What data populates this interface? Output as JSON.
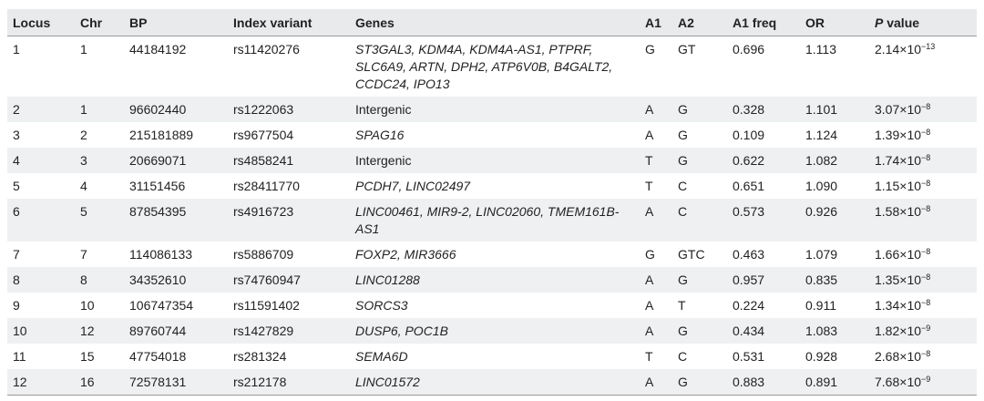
{
  "table": {
    "headers": {
      "locus": "Locus",
      "chr": "Chr",
      "bp": "BP",
      "index_variant": "Index variant",
      "genes": "Genes",
      "a1": "A1",
      "a2": "A2",
      "a1_freq": "A1 freq",
      "or": "OR",
      "p_value_p": "P",
      "p_value_rest": " value"
    },
    "rows": [
      {
        "locus": "1",
        "chr": "1",
        "bp": "44184192",
        "variant": "rs11420276",
        "genes": "ST3GAL3, KDM4A, KDM4A-AS1, PTPRF, SLC6A9, ARTN, DPH2, ATP6V0B, B4GALT2, CCDC24, IPO13",
        "italic": true,
        "a1": "G",
        "a2": "GT",
        "freq": "0.696",
        "or": "1.113",
        "p_mant": "2.14",
        "p_exp": "−13"
      },
      {
        "locus": "2",
        "chr": "1",
        "bp": "96602440",
        "variant": "rs1222063",
        "genes": "Intergenic",
        "italic": false,
        "a1": "A",
        "a2": "G",
        "freq": "0.328",
        "or": "1.101",
        "p_mant": "3.07",
        "p_exp": "−8"
      },
      {
        "locus": "3",
        "chr": "2",
        "bp": "215181889",
        "variant": "rs9677504",
        "genes": "SPAG16",
        "italic": true,
        "a1": "A",
        "a2": "G",
        "freq": "0.109",
        "or": "1.124",
        "p_mant": "1.39",
        "p_exp": "−8"
      },
      {
        "locus": "4",
        "chr": "3",
        "bp": "20669071",
        "variant": "rs4858241",
        "genes": "Intergenic",
        "italic": false,
        "a1": "T",
        "a2": "G",
        "freq": "0.622",
        "or": "1.082",
        "p_mant": "1.74",
        "p_exp": "−8"
      },
      {
        "locus": "5",
        "chr": "4",
        "bp": "31151456",
        "variant": "rs28411770",
        "genes": "PCDH7, LINC02497",
        "italic": true,
        "a1": "T",
        "a2": "C",
        "freq": "0.651",
        "or": "1.090",
        "p_mant": "1.15",
        "p_exp": "−8"
      },
      {
        "locus": "6",
        "chr": "5",
        "bp": "87854395",
        "variant": "rs4916723",
        "genes": "LINC00461, MIR9-2, LINC02060, TMEM161B-AS1",
        "italic": true,
        "a1": "A",
        "a2": "C",
        "freq": "0.573",
        "or": "0.926",
        "p_mant": "1.58",
        "p_exp": "−8"
      },
      {
        "locus": "7",
        "chr": "7",
        "bp": "114086133",
        "variant": "rs5886709",
        "genes": "FOXP2, MIR3666",
        "italic": true,
        "a1": "G",
        "a2": "GTC",
        "freq": "0.463",
        "or": "1.079",
        "p_mant": "1.66",
        "p_exp": "−8"
      },
      {
        "locus": "8",
        "chr": "8",
        "bp": "34352610",
        "variant": "rs74760947",
        "genes": "LINC01288",
        "italic": true,
        "a1": "A",
        "a2": "G",
        "freq": "0.957",
        "or": "0.835",
        "p_mant": "1.35",
        "p_exp": "−8"
      },
      {
        "locus": "9",
        "chr": "10",
        "bp": "106747354",
        "variant": "rs11591402",
        "genes": "SORCS3",
        "italic": true,
        "a1": "A",
        "a2": "T",
        "freq": "0.224",
        "or": "0.911",
        "p_mant": "1.34",
        "p_exp": "−8"
      },
      {
        "locus": "10",
        "chr": "12",
        "bp": "89760744",
        "variant": "rs1427829",
        "genes": "DUSP6, POC1B",
        "italic": true,
        "a1": "A",
        "a2": "G",
        "freq": "0.434",
        "or": "1.083",
        "p_mant": "1.82",
        "p_exp": "−9"
      },
      {
        "locus": "11",
        "chr": "15",
        "bp": "47754018",
        "variant": "rs281324",
        "genes": "SEMA6D",
        "italic": true,
        "a1": "T",
        "a2": "C",
        "freq": "0.531",
        "or": "0.928",
        "p_mant": "2.68",
        "p_exp": "−8"
      },
      {
        "locus": "12",
        "chr": "16",
        "bp": "72578131",
        "variant": "rs212178",
        "genes": "LINC01572",
        "italic": true,
        "a1": "A",
        "a2": "G",
        "freq": "0.883",
        "or": "0.891",
        "p_mant": "7.68",
        "p_exp": "−9"
      }
    ],
    "times_symbol": "×",
    "ten": "10"
  }
}
